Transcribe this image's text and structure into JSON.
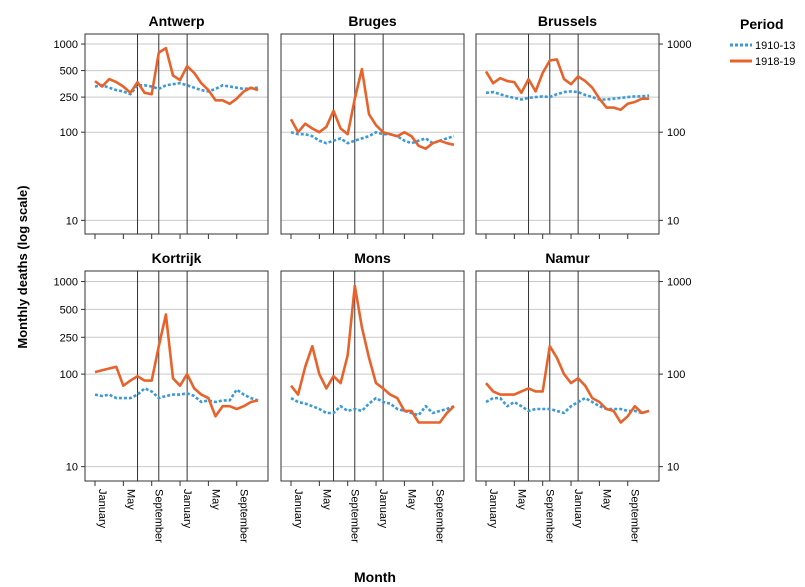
{
  "chart_data": {
    "type": "line",
    "ylabel": "Monthly deaths (log scale)",
    "xlabel": "Month",
    "yscale": "log",
    "ylim": [
      7,
      1300
    ],
    "yticks": [
      10,
      100,
      250,
      500,
      1000
    ],
    "ytick_labels": [
      "10",
      "100",
      "250",
      "500",
      "1000"
    ],
    "yticks_sparse": [
      10,
      100,
      1000
    ],
    "ytick_labels_sparse": [
      "10",
      "100",
      "1000"
    ],
    "x_months": 24,
    "xtick_months": [
      1,
      5,
      9,
      13,
      17,
      21
    ],
    "xtick_labels": [
      "January",
      "May",
      "September",
      "January",
      "May",
      "September"
    ],
    "vlines_months": [
      7,
      10,
      14
    ],
    "grid": "horizontal",
    "legend": {
      "title": "Period",
      "position": "top-right",
      "entries": [
        {
          "label": "1910-13",
          "color": "#3a9ad9",
          "style": "dotted"
        },
        {
          "label": "1918-19",
          "color": "#e8632b",
          "style": "solid"
        }
      ]
    },
    "panels": [
      {
        "title": "Antwerp",
        "series": [
          {
            "name": "1910-13",
            "values": [
              330,
              340,
              320,
              300,
              290,
              270,
              340,
              340,
              330,
              310,
              340,
              350,
              360,
              340,
              320,
              300,
              290,
              310,
              340,
              330,
              320,
              310,
              315,
              320
            ]
          },
          {
            "name": "1918-19",
            "values": [
              380,
              330,
              400,
              370,
              330,
              280,
              370,
              280,
              270,
              800,
              900,
              440,
              390,
              560,
              470,
              360,
              300,
              230,
              230,
              210,
              240,
              290,
              320,
              300
            ]
          }
        ]
      },
      {
        "title": "Bruges",
        "series": [
          {
            "name": "1910-13",
            "values": [
              100,
              95,
              95,
              90,
              80,
              75,
              80,
              85,
              75,
              80,
              85,
              90,
              100,
              95,
              95,
              90,
              80,
              75,
              80,
              85,
              75,
              80,
              85,
              90
            ]
          },
          {
            "name": "1918-19",
            "values": [
              140,
              100,
              125,
              110,
              100,
              115,
              175,
              110,
              95,
              240,
              520,
              160,
              120,
              100,
              95,
              90,
              100,
              90,
              70,
              65,
              75,
              80,
              75,
              72
            ]
          }
        ]
      },
      {
        "title": "Brussels",
        "series": [
          {
            "name": "1910-13",
            "values": [
              280,
              285,
              270,
              255,
              245,
              235,
              245,
              250,
              255,
              250,
              270,
              285,
              290,
              285,
              265,
              250,
              235,
              235,
              240,
              245,
              250,
              255,
              255,
              260
            ]
          },
          {
            "name": "1918-19",
            "values": [
              490,
              360,
              410,
              380,
              370,
              280,
              400,
              290,
              470,
              650,
              670,
              400,
              350,
              430,
              380,
              320,
              240,
              190,
              190,
              180,
              210,
              220,
              240,
              240
            ]
          }
        ]
      },
      {
        "title": "Kortrijk",
        "series": [
          {
            "name": "1910-13",
            "values": [
              60,
              58,
              60,
              55,
              55,
              55,
              60,
              70,
              65,
              55,
              58,
              60,
              60,
              62,
              58,
              50,
              52,
              50,
              52,
              52,
              68,
              60,
              55,
              52
            ]
          },
          {
            "name": "1918-19",
            "values": [
              105,
              110,
              115,
              120,
              75,
              85,
              95,
              85,
              85,
              200,
              440,
              90,
              75,
              100,
              70,
              60,
              55,
              35,
              45,
              45,
              42,
              45,
              50,
              52
            ]
          }
        ]
      },
      {
        "title": "Mons",
        "series": [
          {
            "name": "1910-13",
            "values": [
              55,
              50,
              48,
              45,
              42,
              38,
              38,
              45,
              40,
              42,
              40,
              48,
              55,
              50,
              48,
              42,
              40,
              38,
              36,
              45,
              38,
              40,
              42,
              45
            ]
          },
          {
            "name": "1918-19",
            "values": [
              75,
              60,
              120,
              200,
              100,
              70,
              95,
              80,
              160,
              900,
              320,
              150,
              80,
              70,
              60,
              55,
              40,
              40,
              30,
              30,
              30,
              30,
              38,
              45
            ]
          }
        ]
      },
      {
        "title": "Namur",
        "series": [
          {
            "name": "1910-13",
            "values": [
              50,
              55,
              55,
              45,
              50,
              45,
              40,
              42,
              42,
              42,
              40,
              38,
              45,
              50,
              55,
              50,
              45,
              42,
              42,
              42,
              40,
              40,
              38,
              40
            ]
          },
          {
            "name": "1918-19",
            "values": [
              80,
              65,
              60,
              60,
              60,
              65,
              70,
              65,
              65,
              200,
              150,
              100,
              80,
              90,
              75,
              55,
              50,
              42,
              40,
              30,
              35,
              45,
              38,
              40
            ]
          }
        ]
      }
    ]
  }
}
